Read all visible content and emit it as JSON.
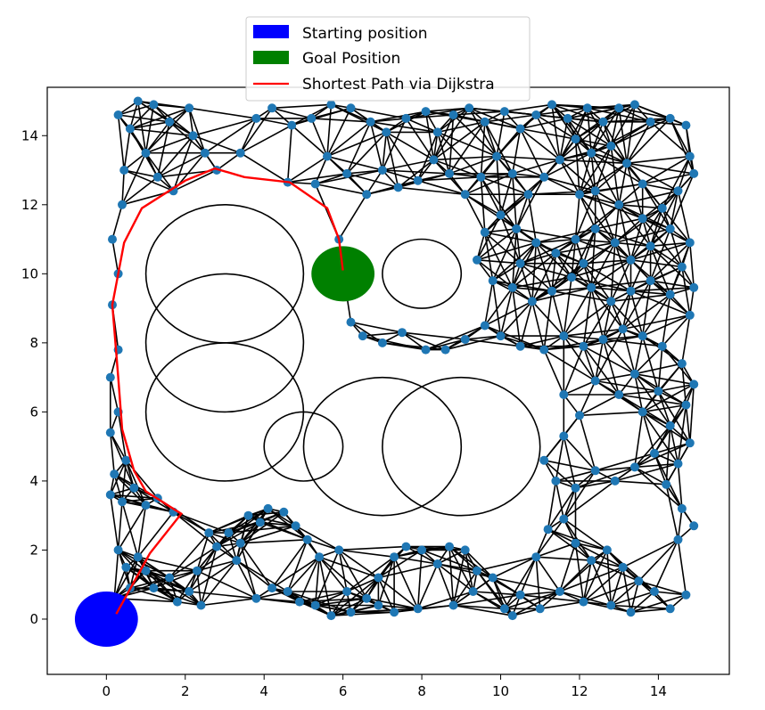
{
  "chart_data": {
    "type": "scatter",
    "title": "",
    "xlabel": "",
    "ylabel": "",
    "xlim": [
      -1.5,
      15.8
    ],
    "ylim": [
      -1.6,
      15.4
    ],
    "xticks": [
      "0",
      "2",
      "4",
      "6",
      "8",
      "10",
      "12",
      "14"
    ],
    "yticks": [
      "0",
      "2",
      "4",
      "6",
      "8",
      "10",
      "12",
      "14"
    ],
    "legend_position": "top-center",
    "legend": [
      {
        "label": "Starting position",
        "color": "#0000ff",
        "kind": "patch"
      },
      {
        "label": "Goal Position",
        "color": "#008000",
        "kind": "patch"
      },
      {
        "label": "Shortest Path via Dijkstra",
        "color": "#ff0000",
        "kind": "line"
      }
    ],
    "start": {
      "x": 0,
      "y": 0,
      "r": 0.8,
      "color": "#0000ff"
    },
    "goal": {
      "x": 6,
      "y": 10,
      "r": 0.8,
      "color": "#008000"
    },
    "obstacles": [
      {
        "x": 3,
        "y": 10,
        "r": 2
      },
      {
        "x": 3,
        "y": 8,
        "r": 2
      },
      {
        "x": 3,
        "y": 6,
        "r": 2
      },
      {
        "x": 5,
        "y": 5,
        "r": 1
      },
      {
        "x": 7,
        "y": 5,
        "r": 2
      },
      {
        "x": 9,
        "y": 5,
        "r": 2
      },
      {
        "x": 8,
        "y": 10,
        "r": 1
      }
    ],
    "node_color": "#1f77b4",
    "edge_color": "#000000",
    "path_color": "#ff0000",
    "path": [
      [
        0.25,
        0.15
      ],
      [
        1.1,
        1.9
      ],
      [
        1.9,
        3.05
      ],
      [
        1.0,
        3.7
      ],
      [
        0.7,
        4.3
      ],
      [
        0.4,
        5.5
      ],
      [
        0.3,
        7.0
      ],
      [
        0.15,
        9.1
      ],
      [
        0.45,
        10.9
      ],
      [
        0.9,
        11.9
      ],
      [
        2.0,
        12.7
      ],
      [
        2.75,
        13.05
      ],
      [
        3.5,
        12.8
      ],
      [
        4.65,
        12.65
      ],
      [
        5.6,
        11.9
      ],
      [
        5.9,
        11.0
      ],
      [
        6.0,
        10.1
      ]
    ],
    "nodes": [
      [
        0.2,
        0.6
      ],
      [
        0.3,
        2.0
      ],
      [
        0.5,
        1.5
      ],
      [
        0.8,
        1.8
      ],
      [
        1.2,
        0.9
      ],
      [
        1.6,
        1.2
      ],
      [
        1.8,
        0.5
      ],
      [
        2.1,
        0.8
      ],
      [
        2.3,
        1.4
      ],
      [
        2.4,
        0.4
      ],
      [
        0.6,
        0.9
      ],
      [
        1.0,
        1.4
      ],
      [
        2.6,
        2.5
      ],
      [
        2.8,
        2.1
      ],
      [
        3.1,
        2.5
      ],
      [
        3.4,
        2.2
      ],
      [
        3.6,
        3.0
      ],
      [
        3.9,
        2.8
      ],
      [
        4.1,
        3.2
      ],
      [
        4.5,
        3.1
      ],
      [
        4.8,
        2.7
      ],
      [
        5.1,
        2.3
      ],
      [
        5.4,
        1.8
      ],
      [
        5.9,
        2.0
      ],
      [
        3.3,
        1.7
      ],
      [
        3.8,
        0.6
      ],
      [
        4.2,
        0.9
      ],
      [
        4.6,
        0.8
      ],
      [
        4.9,
        0.5
      ],
      [
        5.3,
        0.4
      ],
      [
        5.7,
        0.1
      ],
      [
        6.2,
        0.2
      ],
      [
        6.6,
        0.6
      ],
      [
        6.9,
        1.2
      ],
      [
        7.3,
        1.8
      ],
      [
        7.6,
        2.1
      ],
      [
        8.0,
        2.0
      ],
      [
        8.4,
        1.6
      ],
      [
        8.7,
        2.1
      ],
      [
        9.1,
        2.0
      ],
      [
        9.4,
        1.4
      ],
      [
        9.8,
        1.2
      ],
      [
        10.1,
        0.3
      ],
      [
        10.5,
        0.7
      ],
      [
        10.9,
        1.8
      ],
      [
        11.2,
        2.6
      ],
      [
        11.6,
        2.9
      ],
      [
        11.9,
        2.2
      ],
      [
        12.3,
        1.7
      ],
      [
        12.7,
        2.0
      ],
      [
        13.1,
        1.5
      ],
      [
        13.5,
        1.1
      ],
      [
        13.9,
        0.8
      ],
      [
        14.3,
        0.3
      ],
      [
        14.7,
        0.7
      ],
      [
        14.5,
        2.3
      ],
      [
        14.9,
        2.7
      ],
      [
        14.6,
        3.2
      ],
      [
        14.2,
        3.9
      ],
      [
        7.9,
        0.3
      ],
      [
        7.3,
        0.2
      ],
      [
        8.8,
        0.4
      ],
      [
        9.3,
        0.8
      ],
      [
        10.3,
        0.1
      ],
      [
        11.0,
        0.3
      ],
      [
        11.5,
        0.8
      ],
      [
        12.1,
        0.5
      ],
      [
        12.8,
        0.4
      ],
      [
        13.3,
        0.2
      ],
      [
        6.1,
        0.8
      ],
      [
        6.9,
        0.4
      ],
      [
        0.1,
        3.6
      ],
      [
        0.4,
        3.4
      ],
      [
        0.7,
        3.8
      ],
      [
        1.0,
        3.3
      ],
      [
        1.3,
        3.5
      ],
      [
        1.7,
        3.1
      ],
      [
        0.2,
        4.2
      ],
      [
        0.5,
        4.6
      ],
      [
        0.1,
        5.4
      ],
      [
        0.3,
        6.0
      ],
      [
        0.1,
        7.0
      ],
      [
        0.3,
        7.8
      ],
      [
        0.15,
        9.1
      ],
      [
        0.3,
        10.0
      ],
      [
        0.15,
        11.0
      ],
      [
        0.4,
        12.0
      ],
      [
        0.45,
        13.0
      ],
      [
        0.3,
        14.6
      ],
      [
        0.6,
        14.2
      ],
      [
        0.8,
        15.0
      ],
      [
        1.2,
        14.9
      ],
      [
        1.6,
        14.4
      ],
      [
        2.1,
        14.8
      ],
      [
        2.2,
        14.0
      ],
      [
        2.5,
        13.5
      ],
      [
        2.8,
        13.0
      ],
      [
        1.0,
        13.5
      ],
      [
        1.3,
        12.8
      ],
      [
        1.7,
        12.4
      ],
      [
        3.4,
        13.5
      ],
      [
        3.8,
        14.5
      ],
      [
        4.2,
        14.8
      ],
      [
        4.7,
        14.3
      ],
      [
        5.2,
        14.5
      ],
      [
        5.7,
        14.9
      ],
      [
        6.2,
        14.8
      ],
      [
        6.7,
        14.4
      ],
      [
        7.1,
        14.1
      ],
      [
        7.6,
        14.5
      ],
      [
        8.1,
        14.7
      ],
      [
        8.4,
        14.1
      ],
      [
        8.8,
        14.6
      ],
      [
        9.2,
        14.8
      ],
      [
        9.6,
        14.4
      ],
      [
        10.1,
        14.7
      ],
      [
        10.5,
        14.2
      ],
      [
        10.9,
        14.6
      ],
      [
        11.3,
        14.9
      ],
      [
        11.7,
        14.5
      ],
      [
        12.2,
        14.8
      ],
      [
        12.6,
        14.4
      ],
      [
        13.0,
        14.8
      ],
      [
        13.4,
        14.9
      ],
      [
        13.8,
        14.4
      ],
      [
        14.3,
        14.5
      ],
      [
        14.7,
        14.3
      ],
      [
        14.8,
        13.4
      ],
      [
        14.9,
        12.9
      ],
      [
        14.5,
        12.4
      ],
      [
        14.1,
        11.9
      ],
      [
        13.6,
        12.6
      ],
      [
        13.2,
        13.2
      ],
      [
        12.8,
        13.7
      ],
      [
        12.3,
        13.5
      ],
      [
        11.9,
        13.9
      ],
      [
        11.5,
        13.3
      ],
      [
        11.1,
        12.8
      ],
      [
        10.7,
        12.3
      ],
      [
        10.3,
        12.9
      ],
      [
        9.9,
        13.4
      ],
      [
        9.5,
        12.8
      ],
      [
        9.1,
        12.3
      ],
      [
        8.7,
        12.9
      ],
      [
        8.3,
        13.3
      ],
      [
        7.9,
        12.7
      ],
      [
        7.4,
        12.5
      ],
      [
        7.0,
        13.0
      ],
      [
        6.6,
        12.3
      ],
      [
        6.1,
        12.9
      ],
      [
        5.6,
        13.4
      ],
      [
        5.3,
        12.6
      ],
      [
        4.6,
        12.65
      ],
      [
        5.9,
        11.0
      ],
      [
        6.0,
        10.1
      ],
      [
        6.2,
        8.6
      ],
      [
        6.5,
        8.2
      ],
      [
        7.0,
        8.0
      ],
      [
        7.5,
        8.3
      ],
      [
        8.1,
        7.8
      ],
      [
        8.6,
        7.8
      ],
      [
        9.1,
        8.1
      ],
      [
        9.6,
        8.5
      ],
      [
        10.0,
        8.2
      ],
      [
        10.5,
        7.9
      ],
      [
        11.1,
        7.8
      ],
      [
        11.6,
        8.2
      ],
      [
        12.1,
        7.9
      ],
      [
        12.6,
        8.1
      ],
      [
        13.1,
        8.4
      ],
      [
        13.6,
        8.2
      ],
      [
        14.1,
        7.9
      ],
      [
        14.6,
        7.4
      ],
      [
        14.9,
        6.8
      ],
      [
        14.7,
        6.2
      ],
      [
        14.3,
        5.6
      ],
      [
        14.8,
        5.1
      ],
      [
        14.5,
        4.5
      ],
      [
        13.9,
        4.8
      ],
      [
        13.4,
        4.4
      ],
      [
        12.9,
        4.0
      ],
      [
        12.4,
        4.3
      ],
      [
        11.9,
        3.8
      ],
      [
        11.4,
        4.0
      ],
      [
        11.1,
        4.6
      ],
      [
        11.6,
        5.3
      ],
      [
        12.0,
        5.9
      ],
      [
        11.6,
        6.5
      ],
      [
        12.4,
        6.9
      ],
      [
        13.0,
        6.5
      ],
      [
        13.6,
        6.0
      ],
      [
        14.0,
        6.6
      ],
      [
        13.4,
        7.1
      ],
      [
        14.8,
        8.8
      ],
      [
        14.9,
        9.6
      ],
      [
        14.6,
        10.2
      ],
      [
        14.8,
        10.9
      ],
      [
        14.3,
        11.3
      ],
      [
        13.8,
        10.8
      ],
      [
        13.3,
        10.4
      ],
      [
        12.9,
        10.9
      ],
      [
        12.4,
        11.3
      ],
      [
        11.9,
        11.0
      ],
      [
        11.4,
        10.6
      ],
      [
        10.9,
        10.9
      ],
      [
        10.4,
        11.3
      ],
      [
        10.0,
        11.7
      ],
      [
        9.6,
        11.2
      ],
      [
        9.4,
        10.4
      ],
      [
        9.8,
        9.8
      ],
      [
        10.3,
        9.6
      ],
      [
        10.8,
        9.2
      ],
      [
        11.3,
        9.5
      ],
      [
        11.8,
        9.9
      ],
      [
        12.3,
        9.6
      ],
      [
        12.8,
        9.2
      ],
      [
        13.3,
        9.5
      ],
      [
        13.8,
        9.8
      ],
      [
        14.3,
        9.4
      ],
      [
        12.1,
        10.3
      ],
      [
        10.5,
        10.3
      ],
      [
        12.0,
        12.3
      ],
      [
        12.4,
        12.4
      ],
      [
        13.0,
        12.0
      ],
      [
        13.6,
        11.6
      ]
    ]
  }
}
